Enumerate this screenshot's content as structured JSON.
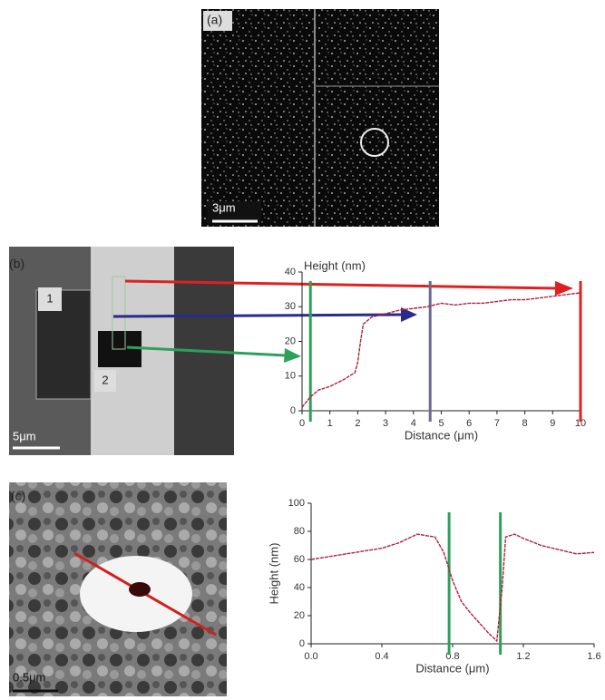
{
  "panels": {
    "a": "(a)",
    "b": "(b)",
    "c": "(c)",
    "scale_a": "3μm",
    "scale_b": "5μm",
    "scale_c": "0.5μm",
    "region_1": "1",
    "region_2": "2"
  },
  "chart_data": [
    {
      "type": "line",
      "ylabel": "Height (nm)",
      "xlabel": "Distance (μm)",
      "x": [
        0,
        0.3,
        0.6,
        1,
        1.5,
        1.9,
        2.0,
        2.1,
        2.2,
        2.5,
        3,
        3.5,
        4,
        4.5,
        5,
        5.5,
        6,
        6.5,
        7,
        7.5,
        8,
        8.5,
        9,
        9.5,
        10
      ],
      "series": [
        {
          "color": "#b0203a",
          "values": [
            1,
            4,
            6,
            7,
            9,
            11,
            14,
            20,
            25,
            27,
            28,
            29,
            29.5,
            30,
            31,
            30.5,
            31,
            31,
            31.5,
            32,
            32,
            32.5,
            33,
            33.5,
            34
          ]
        }
      ],
      "markers": [
        {
          "x": 0.3,
          "color": "#2ea05a"
        },
        {
          "x": 4.6,
          "color": "#6a6a90"
        },
        {
          "x": 10,
          "color": "#e02020"
        }
      ],
      "xlim": [
        0,
        10
      ],
      "xticks": [
        0,
        1,
        2,
        3,
        4,
        5,
        6,
        7,
        8,
        9,
        10
      ],
      "ylim": [
        0,
        40
      ],
      "yticks": [
        0,
        10,
        20,
        30,
        40
      ]
    },
    {
      "type": "line",
      "ylabel": "Height (nm)",
      "xlabel": "Distance (μm)",
      "x": [
        0,
        0.1,
        0.2,
        0.3,
        0.4,
        0.5,
        0.6,
        0.7,
        0.75,
        0.8,
        0.85,
        0.9,
        0.95,
        1.0,
        1.05,
        1.08,
        1.1,
        1.15,
        1.2,
        1.3,
        1.4,
        1.5,
        1.6
      ],
      "series": [
        {
          "color": "#b0203a",
          "values": [
            60,
            62,
            64,
            66,
            68,
            72,
            78,
            76,
            65,
            45,
            30,
            22,
            15,
            8,
            2,
            40,
            76,
            78,
            75,
            70,
            67,
            64,
            65
          ]
        }
      ],
      "markers": [
        {
          "x": 0.78,
          "color": "#2ea05a"
        },
        {
          "x": 1.07,
          "color": "#2ea05a"
        }
      ],
      "xlim": [
        0,
        1.6
      ],
      "xticks": [
        {
          "value": 0,
          "label": "0.0"
        },
        0.4,
        0.8,
        1.2,
        1.6
      ],
      "ylim": [
        0,
        100
      ],
      "yticks": [
        0,
        20,
        40,
        60,
        80,
        100
      ]
    }
  ]
}
